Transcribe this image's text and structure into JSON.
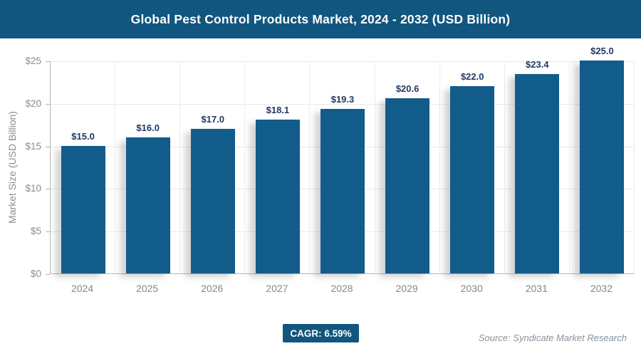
{
  "header": {
    "title": "Global Pest Control Products Market, 2024 - 2032 (USD Billion)",
    "bg_color": "#11567E"
  },
  "chart_data": {
    "type": "bar",
    "title": "Global Pest Control Products Market, 2024 - 2032 (USD Billion)",
    "categories": [
      "2024",
      "2025",
      "2026",
      "2027",
      "2028",
      "2029",
      "2030",
      "2031",
      "2032"
    ],
    "values": [
      15.0,
      16.0,
      17.0,
      18.1,
      19.3,
      20.6,
      22.0,
      23.4,
      25.0
    ],
    "value_labels": [
      "$15.0",
      "$16.0",
      "$17.0",
      "$18.1",
      "$19.3",
      "$20.6",
      "$22.0",
      "$23.4",
      "$25.0"
    ],
    "xlabel": "",
    "ylabel": "Market Size (USD Billion)",
    "ylim": [
      0,
      25
    ],
    "ytick_interval": 5,
    "ytick_labels": [
      "$0",
      "$5",
      "$10",
      "$15",
      "$20",
      "$25"
    ],
    "grid": true,
    "legend": false,
    "bar_color": "#115C8B",
    "value_label_color": "#1F3A60"
  },
  "footer": {
    "cagr_label": "CAGR: 6.59%",
    "source": "Source: Syndicate Market Research"
  }
}
